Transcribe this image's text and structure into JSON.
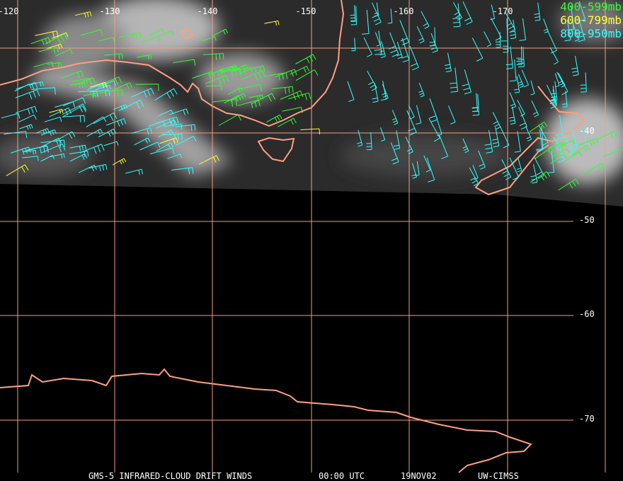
{
  "map": {
    "longitude_labels": [
      "-120",
      "-130",
      "-140",
      "-150",
      "-160",
      "-170"
    ],
    "latitude_labels": [
      "-40",
      "-50",
      "-60",
      "-70"
    ],
    "legend": [
      {
        "label": "400-599mb",
        "color": "#33ff33"
      },
      {
        "label": "600-799mb",
        "color": "#ffff33"
      },
      {
        "label": "800-950mb",
        "color": "#33ffff"
      }
    ],
    "footer": [
      "GMS-5 INFRARED-CLOUD DRIFT WINDS",
      "00:00 UTC",
      "19NOV02",
      "UW-CIMSS"
    ]
  }
}
